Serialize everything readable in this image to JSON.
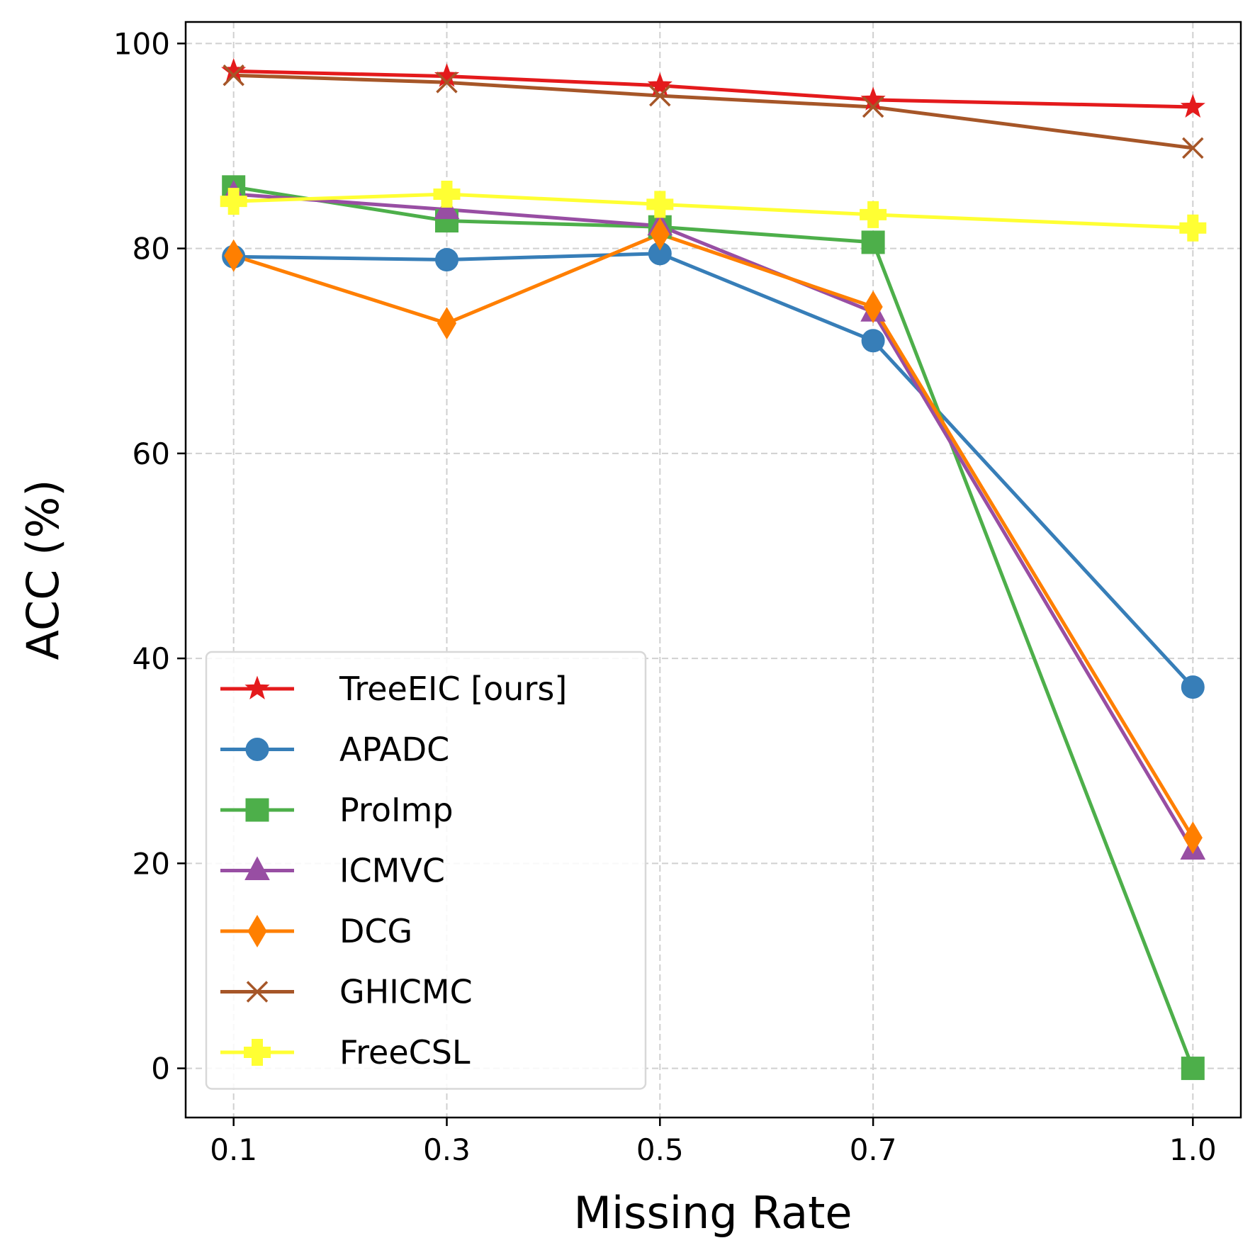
{
  "chart_data": {
    "type": "line",
    "title": "",
    "xlabel": "Missing Rate",
    "ylabel": "ACC (%)",
    "x": [
      0.1,
      0.3,
      0.5,
      0.7,
      1.0
    ],
    "x_tick_labels": [
      "0.1",
      "0.3",
      "0.5",
      "0.7",
      "1.0"
    ],
    "y_ticks": [
      0,
      20,
      40,
      60,
      80,
      100
    ],
    "y_tick_labels": [
      "0",
      "20",
      "40",
      "60",
      "80",
      "100"
    ],
    "xlim": [
      0.055,
      1.045
    ],
    "ylim": [
      -4.8,
      102.1
    ],
    "grid": true,
    "legend_position": "lower-left",
    "series": [
      {
        "name": "TreeEIC [ours]",
        "color": "#e41a1c",
        "marker": "star",
        "values": [
          97.3,
          96.8,
          95.9,
          94.5,
          93.8
        ]
      },
      {
        "name": "APADC",
        "color": "#377eb8",
        "marker": "circle",
        "values": [
          79.2,
          78.9,
          79.5,
          71.0,
          37.2
        ]
      },
      {
        "name": "ProImp",
        "color": "#4daf4a",
        "marker": "square",
        "values": [
          86.0,
          82.7,
          82.1,
          80.6,
          0.0
        ]
      },
      {
        "name": "ICMVC",
        "color": "#984ea3",
        "marker": "triangle",
        "values": [
          85.3,
          83.8,
          82.2,
          73.8,
          21.3
        ]
      },
      {
        "name": "DCG",
        "color": "#ff7f00",
        "marker": "diamond",
        "values": [
          79.3,
          72.7,
          81.4,
          74.3,
          22.5
        ]
      },
      {
        "name": "GHICMC",
        "color": "#a65628",
        "marker": "x",
        "values": [
          96.9,
          96.2,
          94.9,
          93.8,
          89.8
        ]
      },
      {
        "name": "FreeCSL",
        "color": "#ffff33",
        "marker": "plus",
        "values": [
          84.6,
          85.3,
          84.3,
          83.3,
          82.0
        ]
      }
    ]
  }
}
